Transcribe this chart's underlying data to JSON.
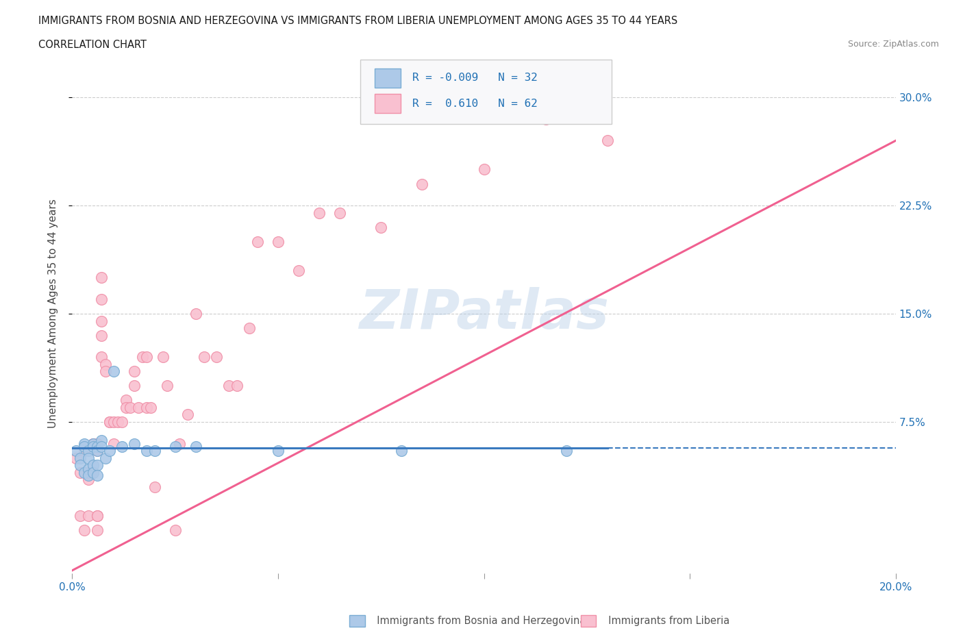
{
  "title_line1": "IMMIGRANTS FROM BOSNIA AND HERZEGOVINA VS IMMIGRANTS FROM LIBERIA UNEMPLOYMENT AMONG AGES 35 TO 44 YEARS",
  "title_line2": "CORRELATION CHART",
  "source": "Source: ZipAtlas.com",
  "ylabel": "Unemployment Among Ages 35 to 44 years",
  "xlim": [
    0.0,
    0.2
  ],
  "ylim": [
    -0.03,
    0.33
  ],
  "ytick_positions": [
    0.075,
    0.15,
    0.225,
    0.3
  ],
  "ytick_labels": [
    "7.5%",
    "15.0%",
    "22.5%",
    "30.0%"
  ],
  "bosnia_color": "#adc9e8",
  "bosnia_edge": "#7aadd4",
  "liberia_color": "#f9c0d0",
  "liberia_edge": "#f090a8",
  "bosnia_line_color": "#3a7abf",
  "liberia_line_color": "#f06090",
  "watermark": "ZIPatlas",
  "bottom_label_1": "Immigrants from Bosnia and Herzegovina",
  "bottom_label_2": "Immigrants from Liberia",
  "bosnia_x": [
    0.001,
    0.002,
    0.002,
    0.003,
    0.003,
    0.003,
    0.004,
    0.004,
    0.004,
    0.004,
    0.005,
    0.005,
    0.005,
    0.005,
    0.006,
    0.006,
    0.006,
    0.006,
    0.007,
    0.007,
    0.008,
    0.009,
    0.01,
    0.012,
    0.015,
    0.018,
    0.02,
    0.025,
    0.03,
    0.05,
    0.08,
    0.12
  ],
  "bosnia_y": [
    0.055,
    0.05,
    0.045,
    0.06,
    0.058,
    0.04,
    0.055,
    0.05,
    0.042,
    0.038,
    0.06,
    0.058,
    0.045,
    0.04,
    0.058,
    0.055,
    0.045,
    0.038,
    0.062,
    0.058,
    0.05,
    0.055,
    0.11,
    0.058,
    0.06,
    0.055,
    0.055,
    0.058,
    0.058,
    0.055,
    0.055,
    0.055
  ],
  "liberia_x": [
    0.001,
    0.002,
    0.002,
    0.003,
    0.003,
    0.004,
    0.004,
    0.004,
    0.005,
    0.005,
    0.005,
    0.005,
    0.006,
    0.006,
    0.006,
    0.006,
    0.006,
    0.007,
    0.007,
    0.007,
    0.007,
    0.007,
    0.008,
    0.008,
    0.009,
    0.009,
    0.01,
    0.01,
    0.011,
    0.012,
    0.013,
    0.013,
    0.014,
    0.015,
    0.015,
    0.016,
    0.017,
    0.018,
    0.018,
    0.019,
    0.02,
    0.022,
    0.023,
    0.025,
    0.026,
    0.028,
    0.03,
    0.032,
    0.035,
    0.038,
    0.04,
    0.043,
    0.045,
    0.05,
    0.055,
    0.06,
    0.065,
    0.075,
    0.085,
    0.1,
    0.115,
    0.13
  ],
  "liberia_y": [
    0.05,
    0.04,
    0.01,
    0.055,
    0.0,
    0.035,
    0.01,
    0.04,
    0.06,
    0.06,
    0.06,
    0.04,
    0.06,
    0.055,
    0.0,
    0.01,
    0.01,
    0.175,
    0.16,
    0.145,
    0.135,
    0.12,
    0.115,
    0.11,
    0.075,
    0.075,
    0.075,
    0.06,
    0.075,
    0.075,
    0.09,
    0.085,
    0.085,
    0.11,
    0.1,
    0.085,
    0.12,
    0.085,
    0.12,
    0.085,
    0.03,
    0.12,
    0.1,
    0.0,
    0.06,
    0.08,
    0.15,
    0.12,
    0.12,
    0.1,
    0.1,
    0.14,
    0.2,
    0.2,
    0.18,
    0.22,
    0.22,
    0.21,
    0.24,
    0.25,
    0.285,
    0.27
  ],
  "liberia_line_x0": 0.0,
  "liberia_line_x1": 0.2,
  "liberia_line_y0": -0.028,
  "liberia_line_y1": 0.27,
  "bosnia_line_x0": 0.0,
  "bosnia_line_x1": 0.13,
  "bosnia_line_xdash0": 0.13,
  "bosnia_line_xdash1": 0.2,
  "bosnia_line_y": 0.057
}
